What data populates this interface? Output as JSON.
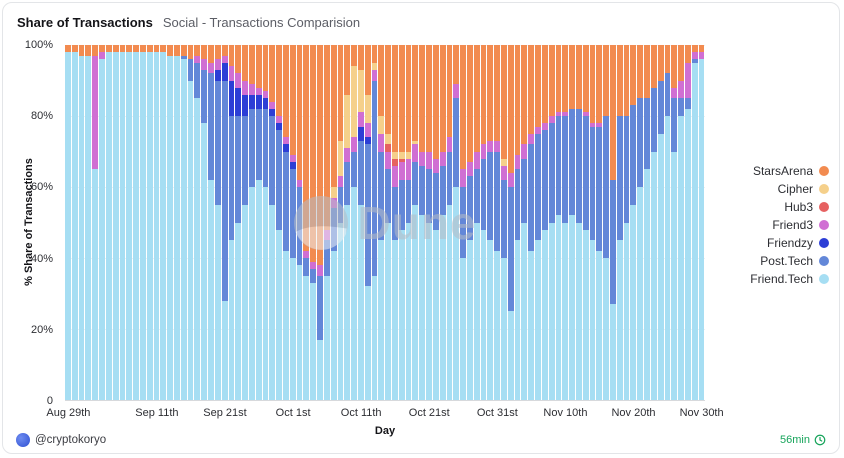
{
  "header": {
    "title": "Share of Transactions",
    "subtitle": "Social - Transactions Comparision"
  },
  "watermark": {
    "text": "Dune"
  },
  "footer": {
    "handle": "@cryptokoryo",
    "refresh": "56min",
    "refresh_color": "#17a45b"
  },
  "chart_data": {
    "type": "bar",
    "stacked": true,
    "percent": true,
    "title": "Share of Transactions",
    "subtitle": "Social - Transactions Comparision",
    "xlabel": "Day",
    "ylabel": "% Share of Transactions",
    "ylim": [
      0,
      100
    ],
    "grid": true,
    "legend_position": "right",
    "y_ticks": [
      "100%",
      "80%",
      "60%",
      "40%",
      "20%",
      "0"
    ],
    "x_ticks": [
      {
        "label": "Aug 29th",
        "index": 0
      },
      {
        "label": "Sep 11th",
        "index": 13
      },
      {
        "label": "Sep 21st",
        "index": 23
      },
      {
        "label": "Oct 1st",
        "index": 33
      },
      {
        "label": "Oct 11th",
        "index": 43
      },
      {
        "label": "Oct 21st",
        "index": 53
      },
      {
        "label": "Oct 31st",
        "index": 63
      },
      {
        "label": "Nov 10th",
        "index": 73
      },
      {
        "label": "Nov 20th",
        "index": 83
      },
      {
        "label": "Nov 30th",
        "index": 93
      }
    ],
    "x": [
      "Aug 29",
      "Aug 30",
      "Aug 31",
      "Sep 1",
      "Sep 2",
      "Sep 3",
      "Sep 4",
      "Sep 5",
      "Sep 6",
      "Sep 7",
      "Sep 8",
      "Sep 9",
      "Sep 10",
      "Sep 11",
      "Sep 12",
      "Sep 13",
      "Sep 14",
      "Sep 15",
      "Sep 16",
      "Sep 17",
      "Sep 18",
      "Sep 19",
      "Sep 20",
      "Sep 21",
      "Sep 22",
      "Sep 23",
      "Sep 24",
      "Sep 25",
      "Sep 26",
      "Sep 27",
      "Sep 28",
      "Sep 29",
      "Sep 30",
      "Oct 1",
      "Oct 2",
      "Oct 3",
      "Oct 4",
      "Oct 5",
      "Oct 6",
      "Oct 7",
      "Oct 8",
      "Oct 9",
      "Oct 10",
      "Oct 11",
      "Oct 12",
      "Oct 13",
      "Oct 14",
      "Oct 15",
      "Oct 16",
      "Oct 17",
      "Oct 18",
      "Oct 19",
      "Oct 20",
      "Oct 21",
      "Oct 22",
      "Oct 23",
      "Oct 24",
      "Oct 25",
      "Oct 26",
      "Oct 27",
      "Oct 28",
      "Oct 29",
      "Oct 30",
      "Oct 31",
      "Nov 1",
      "Nov 2",
      "Nov 3",
      "Nov 4",
      "Nov 5",
      "Nov 6",
      "Nov 7",
      "Nov 8",
      "Nov 9",
      "Nov 10",
      "Nov 11",
      "Nov 12",
      "Nov 13",
      "Nov 14",
      "Nov 15",
      "Nov 16",
      "Nov 17",
      "Nov 18",
      "Nov 19",
      "Nov 20",
      "Nov 21",
      "Nov 22",
      "Nov 23",
      "Nov 24",
      "Nov 25",
      "Nov 26",
      "Nov 27",
      "Nov 28",
      "Nov 29",
      "Nov 30"
    ],
    "series": [
      {
        "name": "StarsArena",
        "color": "#f28b50",
        "values": [
          2,
          2,
          3,
          3,
          3,
          2,
          2,
          2,
          2,
          2,
          2,
          2,
          2,
          2,
          2,
          3,
          3,
          3,
          4,
          3,
          4,
          5,
          4,
          3,
          6,
          8,
          10,
          11,
          12,
          13,
          16,
          20,
          26,
          31,
          38,
          58,
          61,
          62,
          52,
          40,
          27,
          14,
          6,
          7,
          14,
          5,
          20,
          25,
          30,
          30,
          30,
          27,
          30,
          30,
          32,
          30,
          26,
          11,
          35,
          33,
          30,
          28,
          27,
          27,
          32,
          36,
          31,
          28,
          25,
          23,
          22,
          20,
          19,
          19,
          18,
          18,
          19,
          22,
          22,
          20,
          38,
          20,
          20,
          17,
          15,
          15,
          12,
          10,
          8,
          12,
          10,
          5,
          2,
          2
        ]
      },
      {
        "name": "Cipher",
        "color": "#f5d08b",
        "values": [
          0,
          0,
          0,
          0,
          0,
          0,
          0,
          0,
          0,
          0,
          0,
          0,
          0,
          0,
          0,
          0,
          0,
          0,
          0,
          0,
          0,
          0,
          0,
          0,
          0,
          0,
          0,
          0,
          0,
          0,
          0,
          0,
          0,
          0,
          0,
          0,
          0,
          0,
          0,
          3,
          10,
          15,
          20,
          12,
          8,
          2,
          5,
          3,
          2,
          2,
          2,
          1,
          0,
          0,
          0,
          0,
          0,
          0,
          0,
          0,
          0,
          0,
          0,
          0,
          2,
          0,
          0,
          0,
          0,
          0,
          0,
          0,
          0,
          0,
          0,
          0,
          0,
          0,
          0,
          0,
          0,
          0,
          0,
          0,
          0,
          0,
          0,
          0,
          0,
          0,
          0,
          0,
          0,
          0
        ]
      },
      {
        "name": "Hub3",
        "color": "#e66161",
        "values": [
          0,
          0,
          0,
          0,
          0,
          0,
          0,
          0,
          0,
          0,
          0,
          0,
          0,
          0,
          0,
          0,
          0,
          0,
          0,
          0,
          0,
          0,
          0,
          0,
          0,
          0,
          0,
          0,
          0,
          0,
          0,
          0,
          0,
          0,
          0,
          0,
          0,
          0,
          0,
          0,
          0,
          0,
          0,
          0,
          0,
          0,
          0,
          2,
          2,
          1,
          0,
          0,
          0,
          0,
          0,
          0,
          0,
          0,
          0,
          0,
          0,
          0,
          0,
          0,
          0,
          0,
          0,
          0,
          0,
          0,
          0,
          0,
          0,
          0,
          0,
          0,
          0,
          0,
          0,
          0,
          0,
          0,
          0,
          0,
          0,
          0,
          0,
          0,
          0,
          0,
          0,
          0,
          0,
          0
        ]
      },
      {
        "name": "Friend3",
        "color": "#d06fd3",
        "values": [
          0,
          0,
          0,
          0,
          32,
          2,
          0,
          0,
          0,
          0,
          0,
          0,
          0,
          0,
          0,
          0,
          0,
          0,
          0,
          2,
          3,
          3,
          3,
          2,
          4,
          4,
          4,
          3,
          2,
          2,
          2,
          2,
          2,
          2,
          2,
          2,
          2,
          3,
          3,
          3,
          3,
          4,
          4,
          4,
          4,
          3,
          5,
          5,
          6,
          5,
          6,
          5,
          4,
          5,
          4,
          4,
          4,
          4,
          5,
          4,
          5,
          4,
          3,
          3,
          4,
          4,
          4,
          4,
          3,
          2,
          2,
          2,
          1,
          1,
          0,
          0,
          1,
          1,
          1,
          0,
          0,
          0,
          0,
          0,
          0,
          0,
          0,
          0,
          0,
          3,
          5,
          10,
          2,
          2
        ]
      },
      {
        "name": "Friendzy",
        "color": "#2c3ed6",
        "values": [
          0,
          0,
          0,
          0,
          0,
          0,
          0,
          0,
          0,
          0,
          0,
          0,
          0,
          0,
          0,
          0,
          0,
          0,
          0,
          0,
          0,
          0,
          3,
          5,
          10,
          8,
          6,
          4,
          4,
          3,
          2,
          2,
          2,
          2,
          0,
          0,
          0,
          0,
          0,
          0,
          0,
          0,
          0,
          4,
          2,
          0,
          0,
          0,
          0,
          0,
          0,
          0,
          0,
          0,
          0,
          0,
          0,
          0,
          0,
          0,
          0,
          0,
          0,
          0,
          0,
          0,
          0,
          0,
          0,
          0,
          0,
          0,
          0,
          0,
          0,
          0,
          0,
          0,
          0,
          0,
          0,
          0,
          0,
          0,
          0,
          0,
          0,
          0,
          0,
          0,
          0,
          0,
          0,
          0
        ]
      },
      {
        "name": "Post.Tech",
        "color": "#6387d8",
        "values": [
          0,
          0,
          0,
          0,
          0,
          0,
          0,
          0,
          0,
          0,
          0,
          0,
          0,
          0,
          0,
          0,
          0,
          1,
          6,
          10,
          15,
          30,
          35,
          62,
          35,
          30,
          25,
          22,
          20,
          22,
          25,
          28,
          28,
          25,
          22,
          5,
          4,
          18,
          10,
          12,
          10,
          12,
          10,
          18,
          40,
          55,
          25,
          15,
          15,
          14,
          12,
          12,
          14,
          15,
          16,
          14,
          15,
          25,
          20,
          18,
          15,
          20,
          25,
          28,
          22,
          35,
          20,
          18,
          30,
          30,
          28,
          28,
          28,
          30,
          30,
          32,
          32,
          32,
          35,
          40,
          35,
          35,
          30,
          28,
          25,
          20,
          18,
          15,
          12,
          15,
          5,
          3,
          1,
          0
        ]
      },
      {
        "name": "Friend.Tech",
        "color": "#a6def3",
        "values": [
          98,
          98,
          97,
          97,
          65,
          96,
          98,
          98,
          98,
          98,
          98,
          98,
          98,
          98,
          98,
          97,
          97,
          96,
          90,
          85,
          78,
          62,
          55,
          28,
          45,
          50,
          55,
          60,
          62,
          60,
          55,
          48,
          42,
          40,
          38,
          35,
          33,
          17,
          35,
          42,
          50,
          55,
          60,
          55,
          32,
          35,
          45,
          50,
          45,
          48,
          50,
          55,
          52,
          50,
          48,
          52,
          55,
          60,
          40,
          45,
          50,
          48,
          45,
          42,
          40,
          25,
          45,
          50,
          42,
          45,
          48,
          50,
          52,
          50,
          52,
          50,
          48,
          45,
          42,
          40,
          27,
          45,
          50,
          55,
          60,
          65,
          70,
          75,
          80,
          70,
          80,
          82,
          95,
          96
        ]
      }
    ]
  }
}
